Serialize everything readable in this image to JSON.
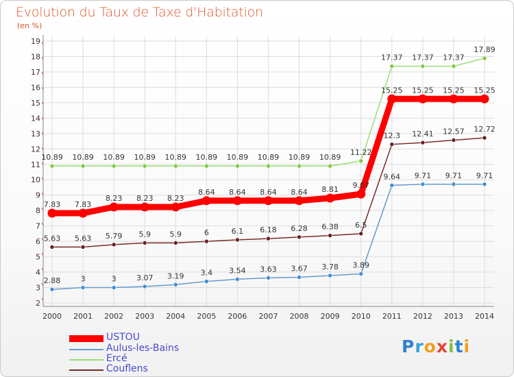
{
  "header": {
    "title": "Evolution du Taux de Taxe d'Habitation",
    "unit": "(en %)"
  },
  "chart_data": {
    "type": "line",
    "title": "Evolution du Taux de Taxe d'Habitation",
    "ylabel": "(en %)",
    "ylim": [
      2,
      19
    ],
    "yticks": [
      "2",
      "3",
      "4",
      "5",
      "6",
      "7",
      "8",
      "9",
      "10",
      "11",
      "12",
      "13",
      "14",
      "15",
      "16",
      "17",
      "18",
      "19"
    ],
    "categories": [
      "2000",
      "2001",
      "2002",
      "2003",
      "2004",
      "2005",
      "2006",
      "2007",
      "2008",
      "2009",
      "2010",
      "2011",
      "2012",
      "2013",
      "2014"
    ],
    "grid": true,
    "legend_position": "bottom-left",
    "series": [
      {
        "name": "USTOU",
        "color": "#ff0000",
        "emphasis": true,
        "values": [
          7.83,
          7.83,
          8.23,
          8.23,
          8.23,
          8.64,
          8.64,
          8.64,
          8.64,
          8.81,
          9.07,
          15.25,
          15.25,
          15.25,
          15.25
        ],
        "labels": [
          "7.83",
          "7.83",
          "8.23",
          "8.23",
          "8.23",
          "8.64",
          "8.64",
          "8.64",
          "8.64",
          "8.81",
          "9.07",
          "15.25",
          "15.25",
          "15.25",
          "15.25"
        ]
      },
      {
        "name": "Aulus-les-Bains",
        "color": "#6699cc",
        "marker": "#3f8fd6",
        "values": [
          2.88,
          3,
          3,
          3.07,
          3.19,
          3.4,
          3.54,
          3.63,
          3.67,
          3.78,
          3.89,
          9.64,
          9.71,
          9.71,
          9.71
        ],
        "labels": [
          "2.88",
          "3",
          "3",
          "3.07",
          "3.19",
          "3.4",
          "3.54",
          "3.63",
          "3.67",
          "3.78",
          "3.89",
          "9.64",
          "9.71",
          "9.71",
          "9.71"
        ]
      },
      {
        "name": "Ercé",
        "color": "#99dd77",
        "marker": "#7dcc3f",
        "values": [
          10.89,
          10.89,
          10.89,
          10.89,
          10.89,
          10.89,
          10.89,
          10.89,
          10.89,
          10.89,
          11.22,
          17.37,
          17.37,
          17.37,
          17.89
        ],
        "labels": [
          "10.89",
          "10.89",
          "10.89",
          "10.89",
          "10.89",
          "10.89",
          "10.89",
          "10.89",
          "10.89",
          "10.89",
          "11.22",
          "17.37",
          "17.37",
          "17.37",
          "17.89"
        ]
      },
      {
        "name": "Couflens",
        "color": "#7a2a2a",
        "marker": "#6b1f1f",
        "values": [
          5.63,
          5.63,
          5.79,
          5.9,
          5.9,
          6,
          6.1,
          6.18,
          6.28,
          6.38,
          6.5,
          12.3,
          12.41,
          12.57,
          12.72
        ],
        "labels": [
          "5.63",
          "5.63",
          "5.79",
          "5.9",
          "5.9",
          "6",
          "6.1",
          "6.18",
          "6.28",
          "6.38",
          "6.5",
          "12.3",
          "12.41",
          "12.57",
          "12.72"
        ]
      }
    ]
  },
  "logo": {
    "text": "Proxiti"
  }
}
